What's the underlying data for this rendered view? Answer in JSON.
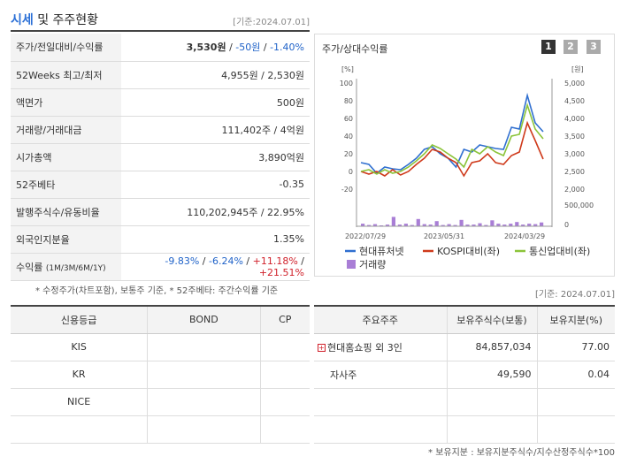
{
  "header": {
    "title_main": "시세",
    "title_rest": " 및 주주현황",
    "date": "[기준:2024.07.01]"
  },
  "price_rows": {
    "price": {
      "label": "주가/전일대비/수익률",
      "price": "3,530원",
      "change": "-50원",
      "rate": "-1.40%"
    },
    "week52": {
      "label": "52Weeks 최고/최저",
      "value": "4,955원 / 2,530원"
    },
    "par": {
      "label": "액면가",
      "value": "500원"
    },
    "volume": {
      "label": "거래량/거래대금",
      "value": "111,402주 / 4억원"
    },
    "mcap": {
      "label": "시가총액",
      "value": "3,890억원"
    },
    "beta": {
      "label": "52주베타",
      "value": "-0.35"
    },
    "shares": {
      "label": "발행주식수/유동비율",
      "value": "110,202,945주 / 22.95%"
    },
    "foreign": {
      "label": "외국인지분율",
      "value": "1.35%"
    },
    "returns": {
      "label": "수익률",
      "label_sub": "(1M/3M/6M/1Y)",
      "r1": "-9.83%",
      "r2": "-6.24%",
      "r3": "+11.18%",
      "r4": "+21.51%"
    }
  },
  "note_price": "* 수정주가(차트포함), 보통주 기준, * 52주베타: 주간수익률 기준",
  "chart_panel": {
    "title": "주가/상대수익률",
    "pages": [
      "1",
      "2",
      "3"
    ]
  },
  "chart_data": {
    "type": "line",
    "left_axis": {
      "label": "[%]",
      "ticks": [
        "100",
        "80",
        "60",
        "40",
        "20",
        "0",
        "-20"
      ],
      "range": [
        -20,
        100
      ]
    },
    "right_axis": {
      "label": "[원]",
      "ticks": [
        "5,000",
        "4,500",
        "4,000",
        "3,500",
        "3,000",
        "2,500",
        "2,000"
      ],
      "range": [
        2000,
        5000
      ]
    },
    "volume_axis": {
      "ticks": [
        "500,000",
        "0"
      ],
      "range": [
        0,
        500000
      ]
    },
    "x_ticks": [
      "2022/07/29",
      "2023/05/31",
      "2024/03/29"
    ],
    "series": [
      {
        "name": "현대퓨처넷",
        "color": "#2f6fd0",
        "values": [
          10,
          8,
          -2,
          5,
          3,
          2,
          8,
          15,
          25,
          28,
          20,
          15,
          5,
          25,
          22,
          30,
          28,
          26,
          25,
          50,
          48,
          86,
          55,
          45
        ]
      },
      {
        "name": "KOSPI대비(좌)",
        "color": "#cf3a1b",
        "values": [
          0,
          -3,
          0,
          -5,
          2,
          -4,
          0,
          8,
          15,
          25,
          22,
          15,
          10,
          -5,
          10,
          12,
          20,
          10,
          8,
          18,
          22,
          55,
          35,
          14
        ]
      },
      {
        "name": "통신업대비(좌)",
        "color": "#8cc43a",
        "values": [
          0,
          2,
          -3,
          2,
          -2,
          0,
          5,
          12,
          20,
          30,
          26,
          20,
          14,
          5,
          25,
          20,
          28,
          22,
          18,
          40,
          42,
          75,
          48,
          37
        ]
      }
    ],
    "volume": {
      "name": "거래량",
      "color": "#a97ed6",
      "values": [
        60000,
        30000,
        50000,
        20000,
        40000,
        220000,
        40000,
        60000,
        30000,
        170000,
        50000,
        40000,
        120000,
        30000,
        50000,
        30000,
        150000,
        40000,
        40000,
        70000,
        30000,
        140000,
        60000,
        40000,
        60000,
        100000,
        40000,
        60000,
        50000,
        90000
      ]
    }
  },
  "date2": "[기준: 2024.07.01]",
  "grade_table": {
    "headers": [
      "신용등급",
      "BOND",
      "CP"
    ],
    "rows": [
      [
        "KIS",
        "",
        ""
      ],
      [
        "KR",
        "",
        ""
      ],
      [
        "NICE",
        "",
        ""
      ],
      [
        "",
        "",
        ""
      ]
    ]
  },
  "share_table": {
    "headers": [
      "주요주주",
      "보유주식수(보통)",
      "보유지분(%)"
    ],
    "rows": [
      {
        "name": "현대홈쇼핑 외 3인",
        "shares": "84,857,034",
        "pct": "77.00",
        "expand": "+"
      },
      {
        "name": "자사주",
        "shares": "49,590",
        "pct": "0.04"
      },
      {
        "name": "",
        "shares": "",
        "pct": ""
      },
      {
        "name": "",
        "shares": "",
        "pct": ""
      }
    ]
  },
  "note_share": "* 보유지분 : 보유지분주식수/지수산정주식수*100",
  "colors": {
    "blue": "#1f62c8",
    "red": "#d0202a",
    "page_active": "#333333",
    "page_inactive": "#aaaaaa"
  }
}
